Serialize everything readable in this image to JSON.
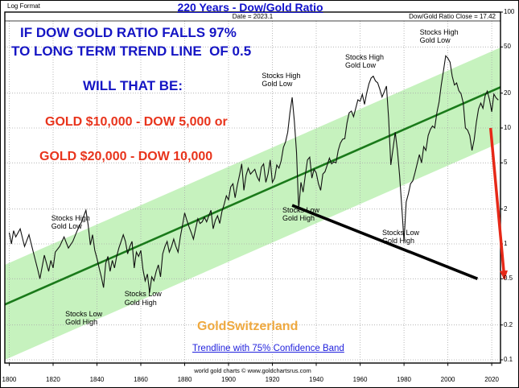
{
  "header": {
    "log_format": "Log Format",
    "title": "220 Years - Dow/Gold Ratio",
    "date_label": "Date = 2023.1",
    "close_label": "Dow/Gold Ratio Close = 17.42"
  },
  "commentary": {
    "line1": "IF DOW GOLD RATIO FALLS 97%",
    "line2": "TO LONG TERM TREND LINE  OF 0.5",
    "line3": "WILL THAT BE:",
    "scenario1": "GOLD $10,000 - DOW 5,000 or",
    "scenario2": "GOLD $20,000 - DOW 10,000",
    "brand": "GoldSwitzerland",
    "trend_note": "Trendline with 75% Confidence Band"
  },
  "footer": {
    "copyright": "world gold charts © www.goldchartsrus.com"
  },
  "colors": {
    "title_blue": "#1111cc",
    "text_blue": "#1515c4",
    "text_red": "#e8341c",
    "brand_gold": "#efa93f",
    "link_blue": "#2222dd",
    "band_green": "#c6f2be",
    "trend_green": "#1a7a1a",
    "price_black": "#111111",
    "resistance_black": "#000000",
    "arrow_red": "#e62817"
  },
  "chart_data": {
    "type": "line",
    "title": "220 Years - Dow/Gold Ratio",
    "y_scale": "log",
    "ylim": [
      0.1,
      100
    ],
    "xlim": [
      1798,
      2024
    ],
    "grid": true,
    "y_ticks": [
      100,
      50,
      20,
      10,
      5,
      2,
      1,
      0.5,
      0.2,
      0.1
    ],
    "y_tick_labels": [
      "100",
      "50",
      "20",
      "10",
      "5",
      "2",
      "1",
      "0.5",
      "0.2",
      "0.1"
    ],
    "x_ticks": [
      1800,
      1820,
      1840,
      1860,
      1880,
      1900,
      1920,
      1940,
      1960,
      1980,
      2000,
      2020
    ],
    "series": [
      {
        "name": "Dow/Gold Ratio",
        "points": [
          [
            1800,
            1.25
          ],
          [
            1801,
            1.0
          ],
          [
            1802,
            1.3
          ],
          [
            1803,
            1.15
          ],
          [
            1805,
            1.35
          ],
          [
            1807,
            0.95
          ],
          [
            1809,
            1.2
          ],
          [
            1811,
            0.85
          ],
          [
            1813,
            0.6
          ],
          [
            1814,
            0.5
          ],
          [
            1816,
            0.8
          ],
          [
            1818,
            0.58
          ],
          [
            1819,
            0.72
          ],
          [
            1820,
            0.62
          ],
          [
            1821,
            0.85
          ],
          [
            1823,
            0.95
          ],
          [
            1825,
            1.15
          ],
          [
            1827,
            0.92
          ],
          [
            1829,
            1.05
          ],
          [
            1831,
            1.3
          ],
          [
            1833,
            1.55
          ],
          [
            1835,
            1.95
          ],
          [
            1836,
            1.45
          ],
          [
            1837,
            0.98
          ],
          [
            1838,
            1.2
          ],
          [
            1839,
            0.88
          ],
          [
            1840,
            0.75
          ],
          [
            1841,
            0.62
          ],
          [
            1842,
            0.52
          ],
          [
            1843,
            0.42
          ],
          [
            1844,
            0.68
          ],
          [
            1845,
            0.78
          ],
          [
            1846,
            0.58
          ],
          [
            1847,
            0.72
          ],
          [
            1848,
            0.62
          ],
          [
            1849,
            0.78
          ],
          [
            1850,
            0.92
          ],
          [
            1851,
            1.05
          ],
          [
            1852,
            1.2
          ],
          [
            1853,
            1.05
          ],
          [
            1854,
            0.82
          ],
          [
            1855,
            0.95
          ],
          [
            1856,
            1.05
          ],
          [
            1857,
            0.62
          ],
          [
            1858,
            0.85
          ],
          [
            1859,
            0.78
          ],
          [
            1860,
            0.88
          ],
          [
            1861,
            0.6
          ],
          [
            1862,
            0.48
          ],
          [
            1863,
            0.55
          ],
          [
            1864,
            0.38
          ],
          [
            1865,
            0.52
          ],
          [
            1866,
            0.48
          ],
          [
            1867,
            0.58
          ],
          [
            1868,
            0.66
          ],
          [
            1869,
            0.52
          ],
          [
            1870,
            0.82
          ],
          [
            1871,
            0.95
          ],
          [
            1872,
            1.05
          ],
          [
            1873,
            0.85
          ],
          [
            1874,
            0.95
          ],
          [
            1875,
            1.1
          ],
          [
            1876,
            0.95
          ],
          [
            1877,
            0.85
          ],
          [
            1878,
            1.15
          ],
          [
            1879,
            1.45
          ],
          [
            1880,
            1.85
          ],
          [
            1881,
            1.6
          ],
          [
            1882,
            1.4
          ],
          [
            1883,
            1.25
          ],
          [
            1884,
            1.1
          ],
          [
            1885,
            1.35
          ],
          [
            1886,
            1.65
          ],
          [
            1887,
            1.5
          ],
          [
            1888,
            1.55
          ],
          [
            1889,
            1.7
          ],
          [
            1890,
            1.55
          ],
          [
            1891,
            1.75
          ],
          [
            1892,
            1.95
          ],
          [
            1893,
            1.35
          ],
          [
            1894,
            1.6
          ],
          [
            1895,
            1.75
          ],
          [
            1896,
            1.5
          ],
          [
            1897,
            1.9
          ],
          [
            1898,
            2.2
          ],
          [
            1899,
            2.6
          ],
          [
            1900,
            2.4
          ],
          [
            1901,
            3.1
          ],
          [
            1902,
            3.3
          ],
          [
            1903,
            2.5
          ],
          [
            1904,
            3.2
          ],
          [
            1905,
            3.9
          ],
          [
            1906,
            4.9
          ],
          [
            1907,
            2.9
          ],
          [
            1908,
            3.9
          ],
          [
            1909,
            4.5
          ],
          [
            1910,
            4.0
          ],
          [
            1911,
            4.2
          ],
          [
            1912,
            4.4
          ],
          [
            1913,
            3.8
          ],
          [
            1914,
            3.5
          ],
          [
            1915,
            4.6
          ],
          [
            1916,
            4.9
          ],
          [
            1917,
            3.4
          ],
          [
            1918,
            4.0
          ],
          [
            1919,
            5.3
          ],
          [
            1920,
            3.4
          ],
          [
            1921,
            3.7
          ],
          [
            1922,
            4.8
          ],
          [
            1923,
            4.5
          ],
          [
            1924,
            5.2
          ],
          [
            1925,
            6.8
          ],
          [
            1926,
            7.6
          ],
          [
            1927,
            9.2
          ],
          [
            1928,
            13.5
          ],
          [
            1929,
            18.4
          ],
          [
            1930,
            11.5
          ],
          [
            1931,
            6.2
          ],
          [
            1932,
            2.0
          ],
          [
            1933,
            3.4
          ],
          [
            1934,
            2.8
          ],
          [
            1935,
            3.9
          ],
          [
            1936,
            5.3
          ],
          [
            1937,
            5.6
          ],
          [
            1938,
            3.7
          ],
          [
            1939,
            4.4
          ],
          [
            1940,
            4.1
          ],
          [
            1941,
            3.3
          ],
          [
            1942,
            2.9
          ],
          [
            1943,
            4.0
          ],
          [
            1944,
            4.2
          ],
          [
            1945,
            4.8
          ],
          [
            1946,
            5.5
          ],
          [
            1947,
            4.9
          ],
          [
            1948,
            5.1
          ],
          [
            1949,
            5.0
          ],
          [
            1950,
            6.4
          ],
          [
            1951,
            7.4
          ],
          [
            1952,
            8.0
          ],
          [
            1953,
            8.1
          ],
          [
            1954,
            11.0
          ],
          [
            1955,
            13.5
          ],
          [
            1956,
            14.0
          ],
          [
            1957,
            12.5
          ],
          [
            1958,
            14.8
          ],
          [
            1959,
            17.5
          ],
          [
            1960,
            17.0
          ],
          [
            1961,
            19.5
          ],
          [
            1962,
            16.0
          ],
          [
            1963,
            20.0
          ],
          [
            1964,
            24.0
          ],
          [
            1965,
            27.0
          ],
          [
            1966,
            28.0
          ],
          [
            1967,
            25.5
          ],
          [
            1968,
            24.5
          ],
          [
            1969,
            21.5
          ],
          [
            1970,
            18.5
          ],
          [
            1971,
            20.5
          ],
          [
            1972,
            23.0
          ],
          [
            1973,
            12.0
          ],
          [
            1974,
            4.8
          ],
          [
            1975,
            6.6
          ],
          [
            1976,
            9.2
          ],
          [
            1977,
            6.4
          ],
          [
            1978,
            3.9
          ],
          [
            1979,
            2.1
          ],
          [
            1980,
            1.05
          ],
          [
            1981,
            2.3
          ],
          [
            1982,
            2.7
          ],
          [
            1983,
            3.3
          ],
          [
            1984,
            3.5
          ],
          [
            1985,
            4.1
          ],
          [
            1986,
            4.9
          ],
          [
            1987,
            5.9
          ],
          [
            1988,
            5.0
          ],
          [
            1989,
            6.9
          ],
          [
            1990,
            6.4
          ],
          [
            1991,
            8.6
          ],
          [
            1992,
            9.7
          ],
          [
            1993,
            10.4
          ],
          [
            1994,
            10.0
          ],
          [
            1995,
            13.6
          ],
          [
            1996,
            16.8
          ],
          [
            1997,
            23.5
          ],
          [
            1998,
            31.0
          ],
          [
            1999,
            42.0
          ],
          [
            2000,
            40.0
          ],
          [
            2001,
            37.0
          ],
          [
            2002,
            28.0
          ],
          [
            2003,
            23.5
          ],
          [
            2004,
            24.5
          ],
          [
            2005,
            21.0
          ],
          [
            2006,
            19.8
          ],
          [
            2007,
            16.5
          ],
          [
            2008,
            10.0
          ],
          [
            2009,
            9.6
          ],
          [
            2010,
            8.6
          ],
          [
            2011,
            6.4
          ],
          [
            2012,
            7.9
          ],
          [
            2013,
            11.2
          ],
          [
            2014,
            14.6
          ],
          [
            2015,
            16.4
          ],
          [
            2016,
            14.8
          ],
          [
            2017,
            19.0
          ],
          [
            2018,
            20.8
          ],
          [
            2019,
            17.5
          ],
          [
            2020,
            13.8
          ],
          [
            2021,
            19.6
          ],
          [
            2022,
            18.2
          ],
          [
            2023,
            17.42
          ]
        ]
      }
    ],
    "trendline": {
      "name": "Long term trendline",
      "start": [
        1798,
        0.3
      ],
      "end": [
        2024,
        22.5
      ],
      "upper_factor": 2.2,
      "lower_factor": 3.0,
      "band_label": "75% Confidence Band"
    },
    "resistance_line": {
      "start": [
        1929,
        2.15
      ],
      "end": [
        2013.5,
        0.5
      ]
    },
    "projection_arrow": {
      "start": [
        2019.5,
        10.0
      ],
      "end": [
        2025.8,
        0.5
      ]
    },
    "annotations": [
      {
        "year": 1828,
        "value": 1.55,
        "lines": [
          "Stocks High",
          "Gold Low"
        ]
      },
      {
        "year": 1834,
        "value": 0.23,
        "lines": [
          "Stocks Low",
          "Gold High"
        ]
      },
      {
        "year": 1861,
        "value": 0.34,
        "lines": [
          "Stocks Low",
          "Gold High"
        ]
      },
      {
        "year": 1924,
        "value": 26,
        "lines": [
          "Stocks High",
          "Gold Low"
        ]
      },
      {
        "year": 1933,
        "value": 1.8,
        "lines": [
          "Stocks Low",
          "Gold High"
        ]
      },
      {
        "year": 1962,
        "value": 38,
        "lines": [
          "Stocks High",
          "Gold Low"
        ]
      },
      {
        "year": 1978.5,
        "value": 1.15,
        "lines": [
          "Stocks Low",
          "Gold High"
        ]
      },
      {
        "year": 1996,
        "value": 62,
        "lines": [
          "Stocks High",
          "Gold Low"
        ]
      }
    ]
  }
}
